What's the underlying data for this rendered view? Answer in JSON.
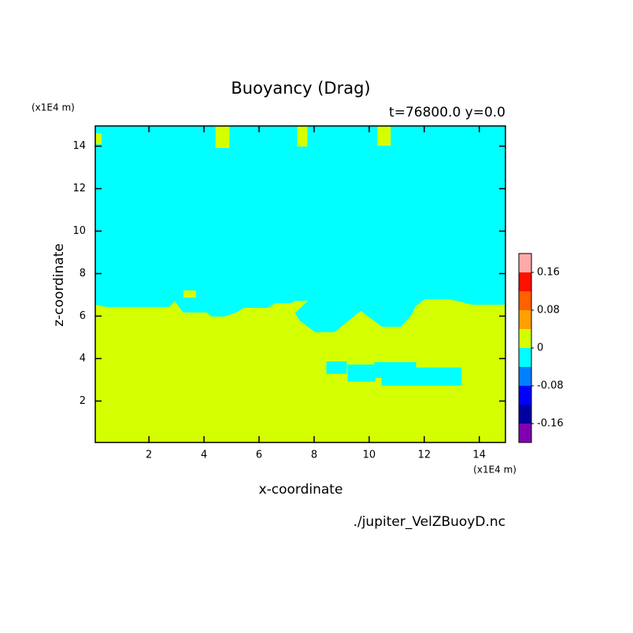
{
  "chart_data": {
    "type": "contour",
    "title": "Buoyancy (Drag)",
    "subtitle": "t=76800.0 y=0.0",
    "x_label": "x-coordinate",
    "y_label": "z-coordinate",
    "x_unit": "(x1E4 m)",
    "y_unit": "(x1E4 m)",
    "source": "./jupiter_VelZBuoyD.nc",
    "xlim": [
      0.05,
      14.95
    ],
    "ylim": [
      0.05,
      14.95
    ],
    "xticks": [
      2,
      4,
      6,
      8,
      10,
      12,
      14
    ],
    "yticks": [
      2,
      4,
      6,
      8,
      10,
      12,
      14
    ],
    "background_color": "#00ffff",
    "regions": [
      {
        "color": "#d4ff00",
        "x": [
          0.05,
          0.05,
          0.46,
          2.74,
          2.94,
          3.23,
          4.09,
          4.26,
          4.74,
          5.17,
          5.46,
          6.31,
          6.6,
          7.17,
          7.31,
          7.74,
          7.29,
          7.46,
          8.03,
          8.74,
          9.69,
          10.03,
          10.46,
          11.17,
          11.57,
          11.69,
          12.03,
          12.89,
          13.74,
          14.95,
          14.95
        ],
        "z": [
          0.05,
          6.52,
          6.41,
          6.41,
          6.67,
          6.15,
          6.15,
          5.96,
          5.96,
          6.15,
          6.37,
          6.37,
          6.59,
          6.59,
          6.7,
          6.7,
          6.15,
          5.78,
          5.22,
          5.22,
          6.22,
          5.89,
          5.48,
          5.48,
          6.07,
          6.44,
          6.78,
          6.78,
          6.52,
          6.52,
          0.05
        ]
      },
      {
        "color": "#00ffff",
        "x": [
          8.46,
          9.17,
          9.17,
          8.46
        ],
        "z": [
          3.3,
          3.3,
          3.85,
          3.85
        ]
      },
      {
        "color": "#00ffff",
        "x": [
          9.23,
          10.2,
          10.2,
          9.23
        ],
        "z": [
          2.93,
          2.93,
          3.7,
          3.7
        ]
      },
      {
        "color": "#00ffff",
        "x": [
          10.2,
          11.69,
          11.69,
          10.2
        ],
        "z": [
          3.11,
          3.11,
          3.81,
          3.81
        ]
      },
      {
        "color": "#00ffff",
        "x": [
          10.46,
          13.34,
          13.34,
          10.46
        ],
        "z": [
          2.74,
          2.74,
          3.56,
          3.56
        ]
      },
      {
        "color": "#d4ff00",
        "x": [
          4.43,
          4.91,
          4.91,
          4.43
        ],
        "z": [
          13.93,
          13.93,
          14.95,
          14.95
        ]
      },
      {
        "color": "#d4ff00",
        "x": [
          7.4,
          7.74,
          7.74,
          7.4
        ],
        "z": [
          14.0,
          14.0,
          14.95,
          14.95
        ]
      },
      {
        "color": "#d4ff00",
        "x": [
          10.31,
          10.77,
          10.77,
          10.31
        ],
        "z": [
          14.04,
          14.04,
          14.95,
          14.95
        ]
      },
      {
        "color": "#d4ff00",
        "x": [
          0.05,
          0.26,
          0.26,
          0.05
        ],
        "z": [
          14.1,
          14.1,
          14.6,
          14.6
        ]
      },
      {
        "color": "#d4ff00",
        "x": [
          3.26,
          3.69,
          3.69,
          3.26
        ],
        "z": [
          6.89,
          6.89,
          7.19,
          7.19
        ]
      }
    ],
    "colorbar": {
      "lim": [
        -0.2,
        0.2
      ],
      "ticks": [
        0.16,
        0.08,
        0,
        -0.08,
        -0.16
      ],
      "colors": [
        "#8000b0",
        "#0000a0",
        "#0000ff",
        "#0080ff",
        "#00ffff",
        "#d4ff00",
        "#ffa000",
        "#ff6000",
        "#ff1000",
        "#ffaaaa"
      ]
    }
  }
}
